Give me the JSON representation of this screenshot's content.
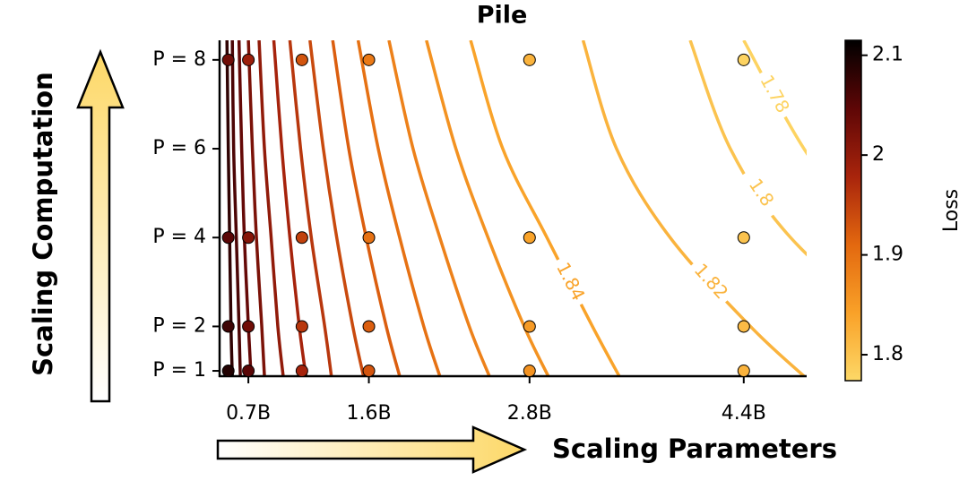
{
  "chart_data": {
    "type": "contour-scatter",
    "title": "Pile",
    "x_label": "Scaling Parameters",
    "y_label": "Scaling Computation",
    "colorbar_label": "Loss",
    "xlim": [
      0.485,
      4.87
    ],
    "ylim": [
      0.88,
      8.44
    ],
    "xticks": [
      {
        "value": 0.7,
        "label": "0.7B"
      },
      {
        "value": 1.6,
        "label": "1.6B"
      },
      {
        "value": 2.8,
        "label": "2.8B"
      },
      {
        "value": 4.4,
        "label": "4.4B"
      }
    ],
    "yticks": [
      {
        "value": 1,
        "label": "P = 1"
      },
      {
        "value": 2,
        "label": "P = 2"
      },
      {
        "value": 4,
        "label": "P = 4"
      },
      {
        "value": 6,
        "label": "P = 6"
      },
      {
        "value": 8,
        "label": "P = 8"
      }
    ],
    "clim": [
      1.774,
      2.115
    ],
    "cticks": [
      1.8,
      1.9,
      2.0,
      2.1
    ],
    "colormap": [
      "#fdd867",
      "#f9a128",
      "#e3680f",
      "#a8240c",
      "#5e0606",
      "#000000"
    ],
    "contour_y": [
      0.88,
      2,
      4,
      6,
      8.44
    ],
    "contours": [
      {
        "level": 2.08,
        "x": [
          0.58,
          0.57,
          0.56,
          0.55,
          0.54
        ]
      },
      {
        "level": 2.06,
        "x": [
          0.64,
          0.63,
          0.61,
          0.59,
          0.58
        ]
      },
      {
        "level": 2.04,
        "x": [
          0.72,
          0.7,
          0.67,
          0.65,
          0.63
        ]
      },
      {
        "level": 2.02,
        "x": [
          0.82,
          0.8,
          0.76,
          0.73,
          0.7
        ]
      },
      {
        "level": 2.0,
        "x": [
          0.96,
          0.92,
          0.87,
          0.82,
          0.78
        ]
      },
      {
        "level": 1.98,
        "x": [
          1.13,
          1.08,
          1.01,
          0.95,
          0.89
        ]
      },
      {
        "level": 1.96,
        "x": [
          1.32,
          1.27,
          1.17,
          1.09,
          1.01
        ]
      },
      {
        "level": 1.94,
        "x": [
          1.56,
          1.48,
          1.36,
          1.26,
          1.16
        ]
      },
      {
        "level": 1.92,
        "x": [
          1.83,
          1.73,
          1.58,
          1.45,
          1.33
        ]
      },
      {
        "level": 1.9,
        "x": [
          2.13,
          2.01,
          1.83,
          1.67,
          1.52
        ]
      },
      {
        "level": 1.88,
        "x": [
          2.5,
          2.35,
          2.13,
          1.93,
          1.75
        ]
      },
      {
        "level": 1.86,
        "x": [
          2.94,
          2.76,
          2.49,
          2.25,
          2.03
        ]
      },
      {
        "level": 1.84,
        "x": [
          3.47,
          3.27,
          2.93,
          2.6,
          2.36
        ],
        "clabel": true
      },
      {
        "level": 1.82,
        "x": [
          4.85,
          4.45,
          3.85,
          3.45,
          3.2
        ],
        "clabel": true
      },
      {
        "level": 1.8,
        "x": [
          6.1,
          5.5,
          4.75,
          4.3,
          4.0
        ],
        "clabel": true
      },
      {
        "level": 1.78,
        "x": [
          6.9,
          6.2,
          5.35,
          4.85,
          4.4
        ],
        "clabel": true
      }
    ],
    "points": {
      "x": [
        0.55,
        0.55,
        0.55,
        0.55,
        0.7,
        0.7,
        0.7,
        0.7,
        1.1,
        1.1,
        1.1,
        1.1,
        1.6,
        1.6,
        1.6,
        1.6,
        2.8,
        2.8,
        2.8,
        2.8,
        4.4,
        4.4,
        4.4,
        4.4
      ],
      "y": [
        1,
        2,
        4,
        8,
        1,
        2,
        4,
        8,
        1,
        2,
        4,
        8,
        1,
        2,
        4,
        8,
        1,
        2,
        4,
        8,
        1,
        2,
        4,
        8
      ],
      "loss": [
        2.09,
        2.07,
        2.05,
        2.03,
        2.05,
        2.03,
        2.01,
        1.99,
        1.98,
        1.96,
        1.95,
        1.93,
        1.93,
        1.92,
        1.9,
        1.89,
        1.86,
        1.85,
        1.84,
        1.82,
        1.82,
        1.81,
        1.8,
        1.78
      ]
    }
  }
}
